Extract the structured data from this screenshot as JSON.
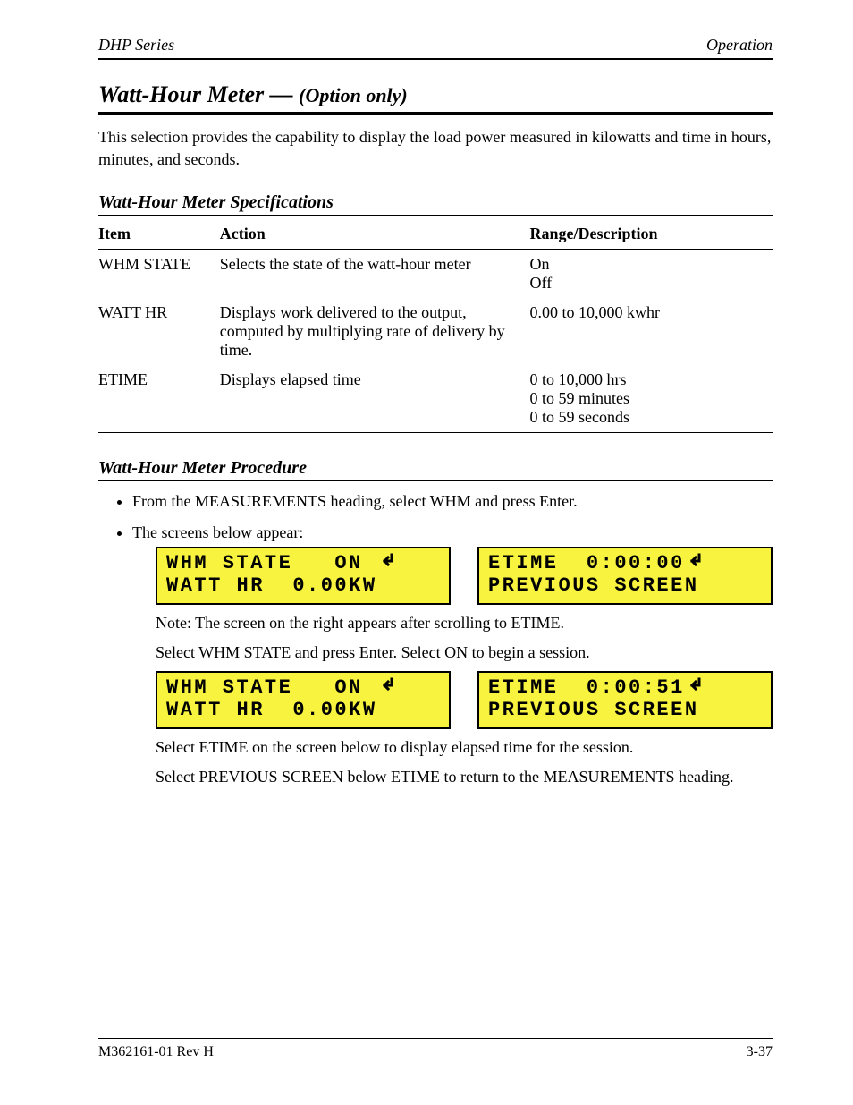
{
  "header": {
    "left": "DHP Series",
    "right": "Operation"
  },
  "section": {
    "title_prefix": "Watt-Hour Meter — ",
    "title_sub": "(Option only)",
    "para": "This selection provides the capability to display the load power measured in kilowatts and time in hours, minutes, and seconds."
  },
  "table": {
    "title": "Watt-Hour Meter Specifications",
    "head": {
      "item": "Item",
      "action": "Action",
      "range": "Range/Description"
    },
    "row1": {
      "item": "WHM STATE",
      "action": "Selects the state of the watt-hour meter",
      "range": "On<br>Off"
    },
    "row2": {
      "item": "WATT HR",
      "action": "Displays work delivered to the output, computed by multiplying rate of delivery by time.",
      "range": "0.00 to 10,000 kwhr"
    },
    "row3": {
      "item": "ETIME",
      "action": "Displays elapsed time",
      "range": "0 to 10,000 hrs<br>0 to 59 minutes<br>0 to 59 seconds"
    }
  },
  "procedure": {
    "title": "Watt-Hour Meter Procedure",
    "b1": "From the MEASUREMENTS heading, select WHM and press Enter.",
    "b2": "The screens below appear:",
    "b2_note": "Note: The screen on the right appears after scrolling to ETIME.",
    "instr1": "Select WHM STATE and press Enter. Select ON to begin a session.",
    "instr2_a": "Select ETIME on the screen below to display elapsed time for the session.",
    "instr2_b": "Select PREVIOUS SCREEN below ETIME to return to the MEASUREMENTS heading."
  },
  "lcd": {
    "a": {
      "l1": "WHM STATE   ON ",
      "l2": "WATT HR  0.00KW"
    },
    "b": {
      "l1": "ETIME  0:00:00",
      "l2": "PREVIOUS SCREEN"
    },
    "c": {
      "l1": "WHM STATE   ON ",
      "l2": "WATT HR  0.00KW"
    },
    "d": {
      "l1": "ETIME  0:00:51",
      "l2": "PREVIOUS SCREEN"
    }
  },
  "footer": {
    "left": "M362161-01 Rev H",
    "right": "3-37"
  },
  "style": {
    "lcd_bg": "#f7f33f",
    "lcd_border": "#000000",
    "accent": "#000000"
  }
}
